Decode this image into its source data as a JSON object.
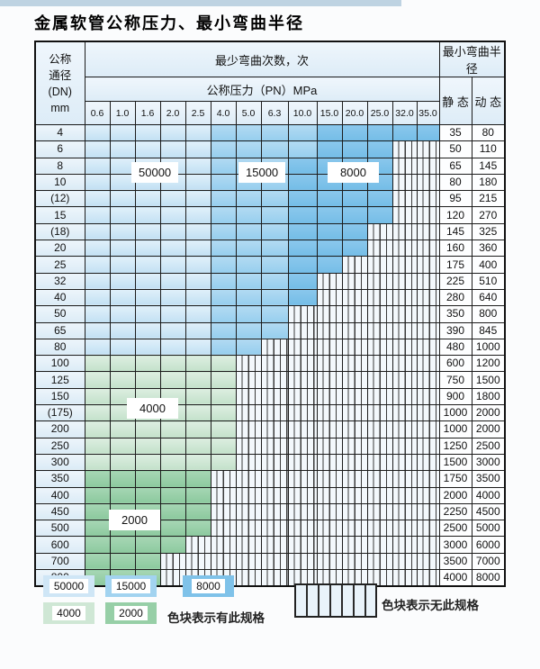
{
  "title": "金属软管公称压力、最小弯曲半径",
  "table": {
    "dn_header_lines": [
      "公称",
      "通径",
      "(DN)",
      "mm"
    ],
    "cycles_header": "最少弯曲次数，次",
    "pressure_header": "公称压力（PN）MPa",
    "radius_header": "最小弯曲半径",
    "static_header": "静 态",
    "dynamic_header": "动 态",
    "pressures": [
      "0.6",
      "1.0",
      "1.6",
      "2.0",
      "2.5",
      "4.0",
      "5.0",
      "6.3",
      "10.0",
      "15.0",
      "20.0",
      "25.0",
      "32.0",
      "35.0"
    ],
    "rows": [
      {
        "dn": "4",
        "static": "35",
        "dynamic": "80",
        "pattern": [
          [
            "50000",
            5
          ],
          [
            "15000",
            4
          ],
          [
            "8000",
            5
          ]
        ]
      },
      {
        "dn": "6",
        "static": "50",
        "dynamic": "110",
        "pattern": [
          [
            "50000",
            5
          ],
          [
            "15000",
            4
          ],
          [
            "8000",
            3
          ],
          [
            "none",
            2
          ]
        ]
      },
      {
        "dn": "8",
        "static": "65",
        "dynamic": "145",
        "pattern": [
          [
            "50000",
            5
          ],
          [
            "15000",
            3
          ],
          [
            "8000",
            4
          ],
          [
            "none",
            2
          ]
        ]
      },
      {
        "dn": "10",
        "static": "80",
        "dynamic": "180",
        "pattern": [
          [
            "50000",
            5
          ],
          [
            "15000",
            3
          ],
          [
            "8000",
            4
          ],
          [
            "none",
            2
          ]
        ]
      },
      {
        "dn": "(12)",
        "static": "95",
        "dynamic": "215",
        "pattern": [
          [
            "50000",
            5
          ],
          [
            "15000",
            3
          ],
          [
            "8000",
            4
          ],
          [
            "none",
            2
          ]
        ]
      },
      {
        "dn": "15",
        "static": "120",
        "dynamic": "270",
        "pattern": [
          [
            "50000",
            5
          ],
          [
            "15000",
            3
          ],
          [
            "8000",
            4
          ],
          [
            "none",
            2
          ]
        ]
      },
      {
        "dn": "(18)",
        "static": "145",
        "dynamic": "325",
        "pattern": [
          [
            "50000",
            5
          ],
          [
            "15000",
            3
          ],
          [
            "8000",
            3
          ],
          [
            "none",
            3
          ]
        ]
      },
      {
        "dn": "20",
        "static": "160",
        "dynamic": "360",
        "pattern": [
          [
            "50000",
            5
          ],
          [
            "15000",
            3
          ],
          [
            "8000",
            3
          ],
          [
            "none",
            3
          ]
        ]
      },
      {
        "dn": "25",
        "static": "175",
        "dynamic": "400",
        "pattern": [
          [
            "50000",
            5
          ],
          [
            "15000",
            3
          ],
          [
            "8000",
            2
          ],
          [
            "none",
            4
          ]
        ]
      },
      {
        "dn": "32",
        "static": "225",
        "dynamic": "510",
        "pattern": [
          [
            "50000",
            5
          ],
          [
            "15000",
            3
          ],
          [
            "8000",
            1
          ],
          [
            "none",
            5
          ]
        ]
      },
      {
        "dn": "40",
        "static": "280",
        "dynamic": "640",
        "pattern": [
          [
            "50000",
            5
          ],
          [
            "15000",
            3
          ],
          [
            "8000",
            1
          ],
          [
            "none",
            5
          ]
        ]
      },
      {
        "dn": "50",
        "static": "350",
        "dynamic": "800",
        "pattern": [
          [
            "50000",
            5
          ],
          [
            "15000",
            3
          ],
          [
            "none",
            6
          ]
        ]
      },
      {
        "dn": "65",
        "static": "390",
        "dynamic": "845",
        "pattern": [
          [
            "50000",
            5
          ],
          [
            "15000",
            3
          ],
          [
            "none",
            6
          ]
        ]
      },
      {
        "dn": "80",
        "static": "480",
        "dynamic": "1000",
        "pattern": [
          [
            "50000",
            5
          ],
          [
            "15000",
            2
          ],
          [
            "none",
            7
          ]
        ]
      },
      {
        "dn": "100",
        "static": "600",
        "dynamic": "1200",
        "pattern": [
          [
            "4000",
            6
          ],
          [
            "none",
            8
          ]
        ]
      },
      {
        "dn": "125",
        "static": "750",
        "dynamic": "1500",
        "pattern": [
          [
            "4000",
            6
          ],
          [
            "none",
            8
          ]
        ]
      },
      {
        "dn": "150",
        "static": "900",
        "dynamic": "1800",
        "pattern": [
          [
            "4000",
            6
          ],
          [
            "none",
            8
          ]
        ]
      },
      {
        "dn": "(175)",
        "static": "1000",
        "dynamic": "2000",
        "pattern": [
          [
            "4000",
            6
          ],
          [
            "none",
            8
          ]
        ]
      },
      {
        "dn": "200",
        "static": "1000",
        "dynamic": "2000",
        "pattern": [
          [
            "4000",
            6
          ],
          [
            "none",
            8
          ]
        ]
      },
      {
        "dn": "250",
        "static": "1250",
        "dynamic": "2500",
        "pattern": [
          [
            "4000",
            6
          ],
          [
            "none",
            8
          ]
        ]
      },
      {
        "dn": "300",
        "static": "1500",
        "dynamic": "3000",
        "pattern": [
          [
            "4000",
            6
          ],
          [
            "none",
            8
          ]
        ]
      },
      {
        "dn": "350",
        "static": "1750",
        "dynamic": "3500",
        "pattern": [
          [
            "2000",
            5
          ],
          [
            "none",
            9
          ]
        ]
      },
      {
        "dn": "400",
        "static": "2000",
        "dynamic": "4000",
        "pattern": [
          [
            "2000",
            5
          ],
          [
            "none",
            9
          ]
        ]
      },
      {
        "dn": "450",
        "static": "2250",
        "dynamic": "4500",
        "pattern": [
          [
            "2000",
            5
          ],
          [
            "none",
            9
          ]
        ]
      },
      {
        "dn": "500",
        "static": "2500",
        "dynamic": "5000",
        "pattern": [
          [
            "2000",
            5
          ],
          [
            "none",
            9
          ]
        ]
      },
      {
        "dn": "600",
        "static": "3000",
        "dynamic": "6000",
        "pattern": [
          [
            "2000",
            4
          ],
          [
            "none",
            10
          ]
        ]
      },
      {
        "dn": "700",
        "static": "3500",
        "dynamic": "7000",
        "pattern": [
          [
            "2000",
            3
          ],
          [
            "none",
            11
          ]
        ]
      },
      {
        "dn": "800",
        "static": "4000",
        "dynamic": "8000",
        "pattern": [
          [
            "2000",
            3
          ],
          [
            "none",
            11
          ]
        ]
      }
    ]
  },
  "overlays": {
    "label_50000": "50000",
    "label_15000": "15000",
    "label_8000": "8000",
    "label_4000": "4000",
    "label_2000": "2000"
  },
  "legend": {
    "label_50000": "50000",
    "label_15000": "15000",
    "label_8000": "8000",
    "label_4000": "4000",
    "label_2000": "2000",
    "note_has_spec": "色块表示有此规格",
    "note_no_spec": "色块表示无此规格"
  },
  "colors": {
    "cycles_50000": "#cfe6f6",
    "cycles_15000": "#a2d3f0",
    "cycles_8000": "#7fc2e9",
    "cycles_4000": "#cfe7d5",
    "cycles_2000": "#97cfa7",
    "no_spec_hatch_bg": "#f3f8fc",
    "grid_line": "#1c1c1c",
    "header_bg": "#e6f1f9"
  }
}
